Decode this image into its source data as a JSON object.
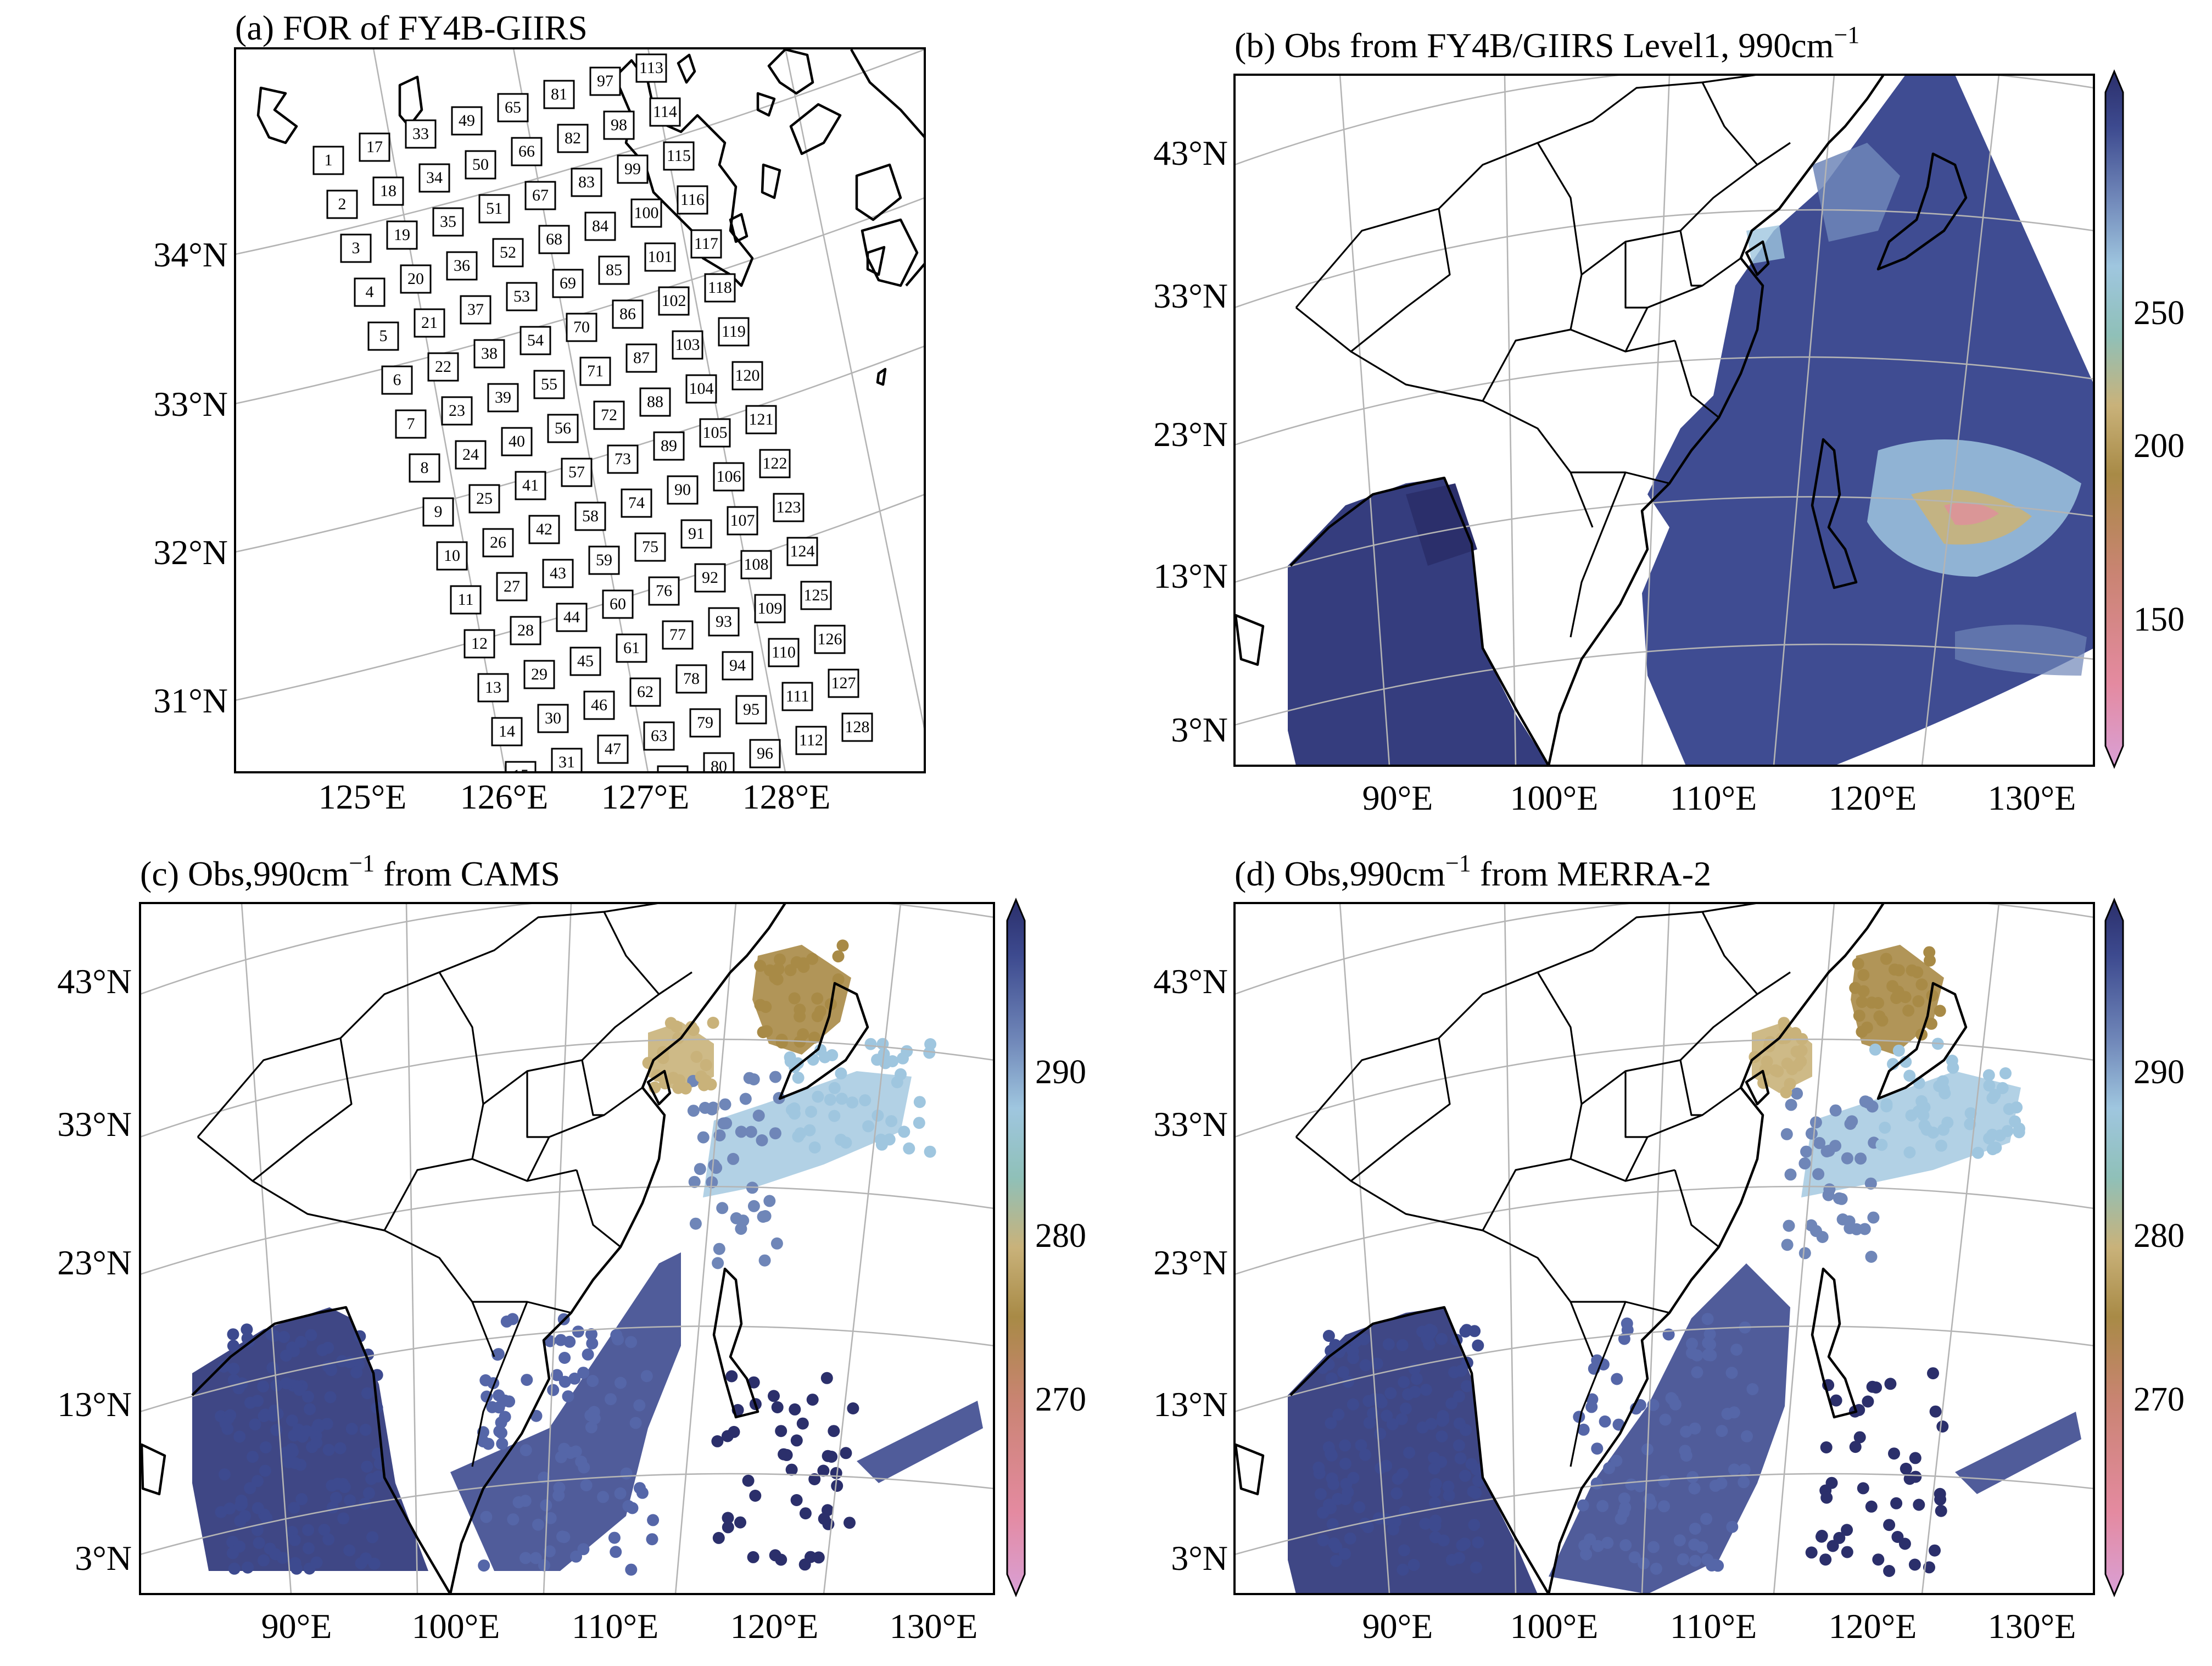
{
  "palette": {
    "deep_navy": "#2b2f6b",
    "navy": "#3d4a8f",
    "blue": "#5566a8",
    "steel": "#6f86b8",
    "light_blue": "#9fc6df",
    "teal": "#8fc0b8",
    "sand": "#c9b27a",
    "olive": "#a88a46",
    "pink": "#e48aa0",
    "lilac": "#d9a0d6"
  },
  "panels": [
    {
      "id": "a",
      "title": "(a) FOR of FY4B-GIIRS",
      "lon_ticks": [
        "125°E",
        "126°E",
        "127°E",
        "128°E"
      ],
      "lat_ticks": [
        "34°N",
        "33°N",
        "32°N",
        "31°N"
      ],
      "for_count": 128
    },
    {
      "id": "b",
      "title_main": "(b) Obs from FY4B/GIIRS Level1, 990cm",
      "title_sup": "−1",
      "lon_ticks": [
        "90°E",
        "100°E",
        "110°E",
        "120°E",
        "130°E"
      ],
      "lat_ticks": [
        "43°N",
        "33°N",
        "23°N",
        "13°N",
        "3°N"
      ],
      "colorbar_ticks": [
        "250",
        "200",
        "150"
      ]
    },
    {
      "id": "c",
      "title_main": "(c) Obs,990cm",
      "title_sup": "−1",
      "title_tail": " from CAMS",
      "lon_ticks": [
        "90°E",
        "100°E",
        "110°E",
        "120°E",
        "130°E"
      ],
      "lat_ticks": [
        "43°N",
        "33°N",
        "23°N",
        "13°N",
        "3°N"
      ],
      "colorbar_ticks": [
        "290",
        "280",
        "270"
      ]
    },
    {
      "id": "d",
      "title_main": "(d) Obs,990cm",
      "title_sup": "−1",
      "title_tail": " from MERRA-2",
      "lon_ticks": [
        "90°E",
        "100°E",
        "110°E",
        "120°E",
        "130°E"
      ],
      "lat_ticks": [
        "43°N",
        "33°N",
        "23°N",
        "13°N",
        "3°N"
      ],
      "colorbar_ticks": [
        "290",
        "280",
        "270"
      ]
    }
  ]
}
